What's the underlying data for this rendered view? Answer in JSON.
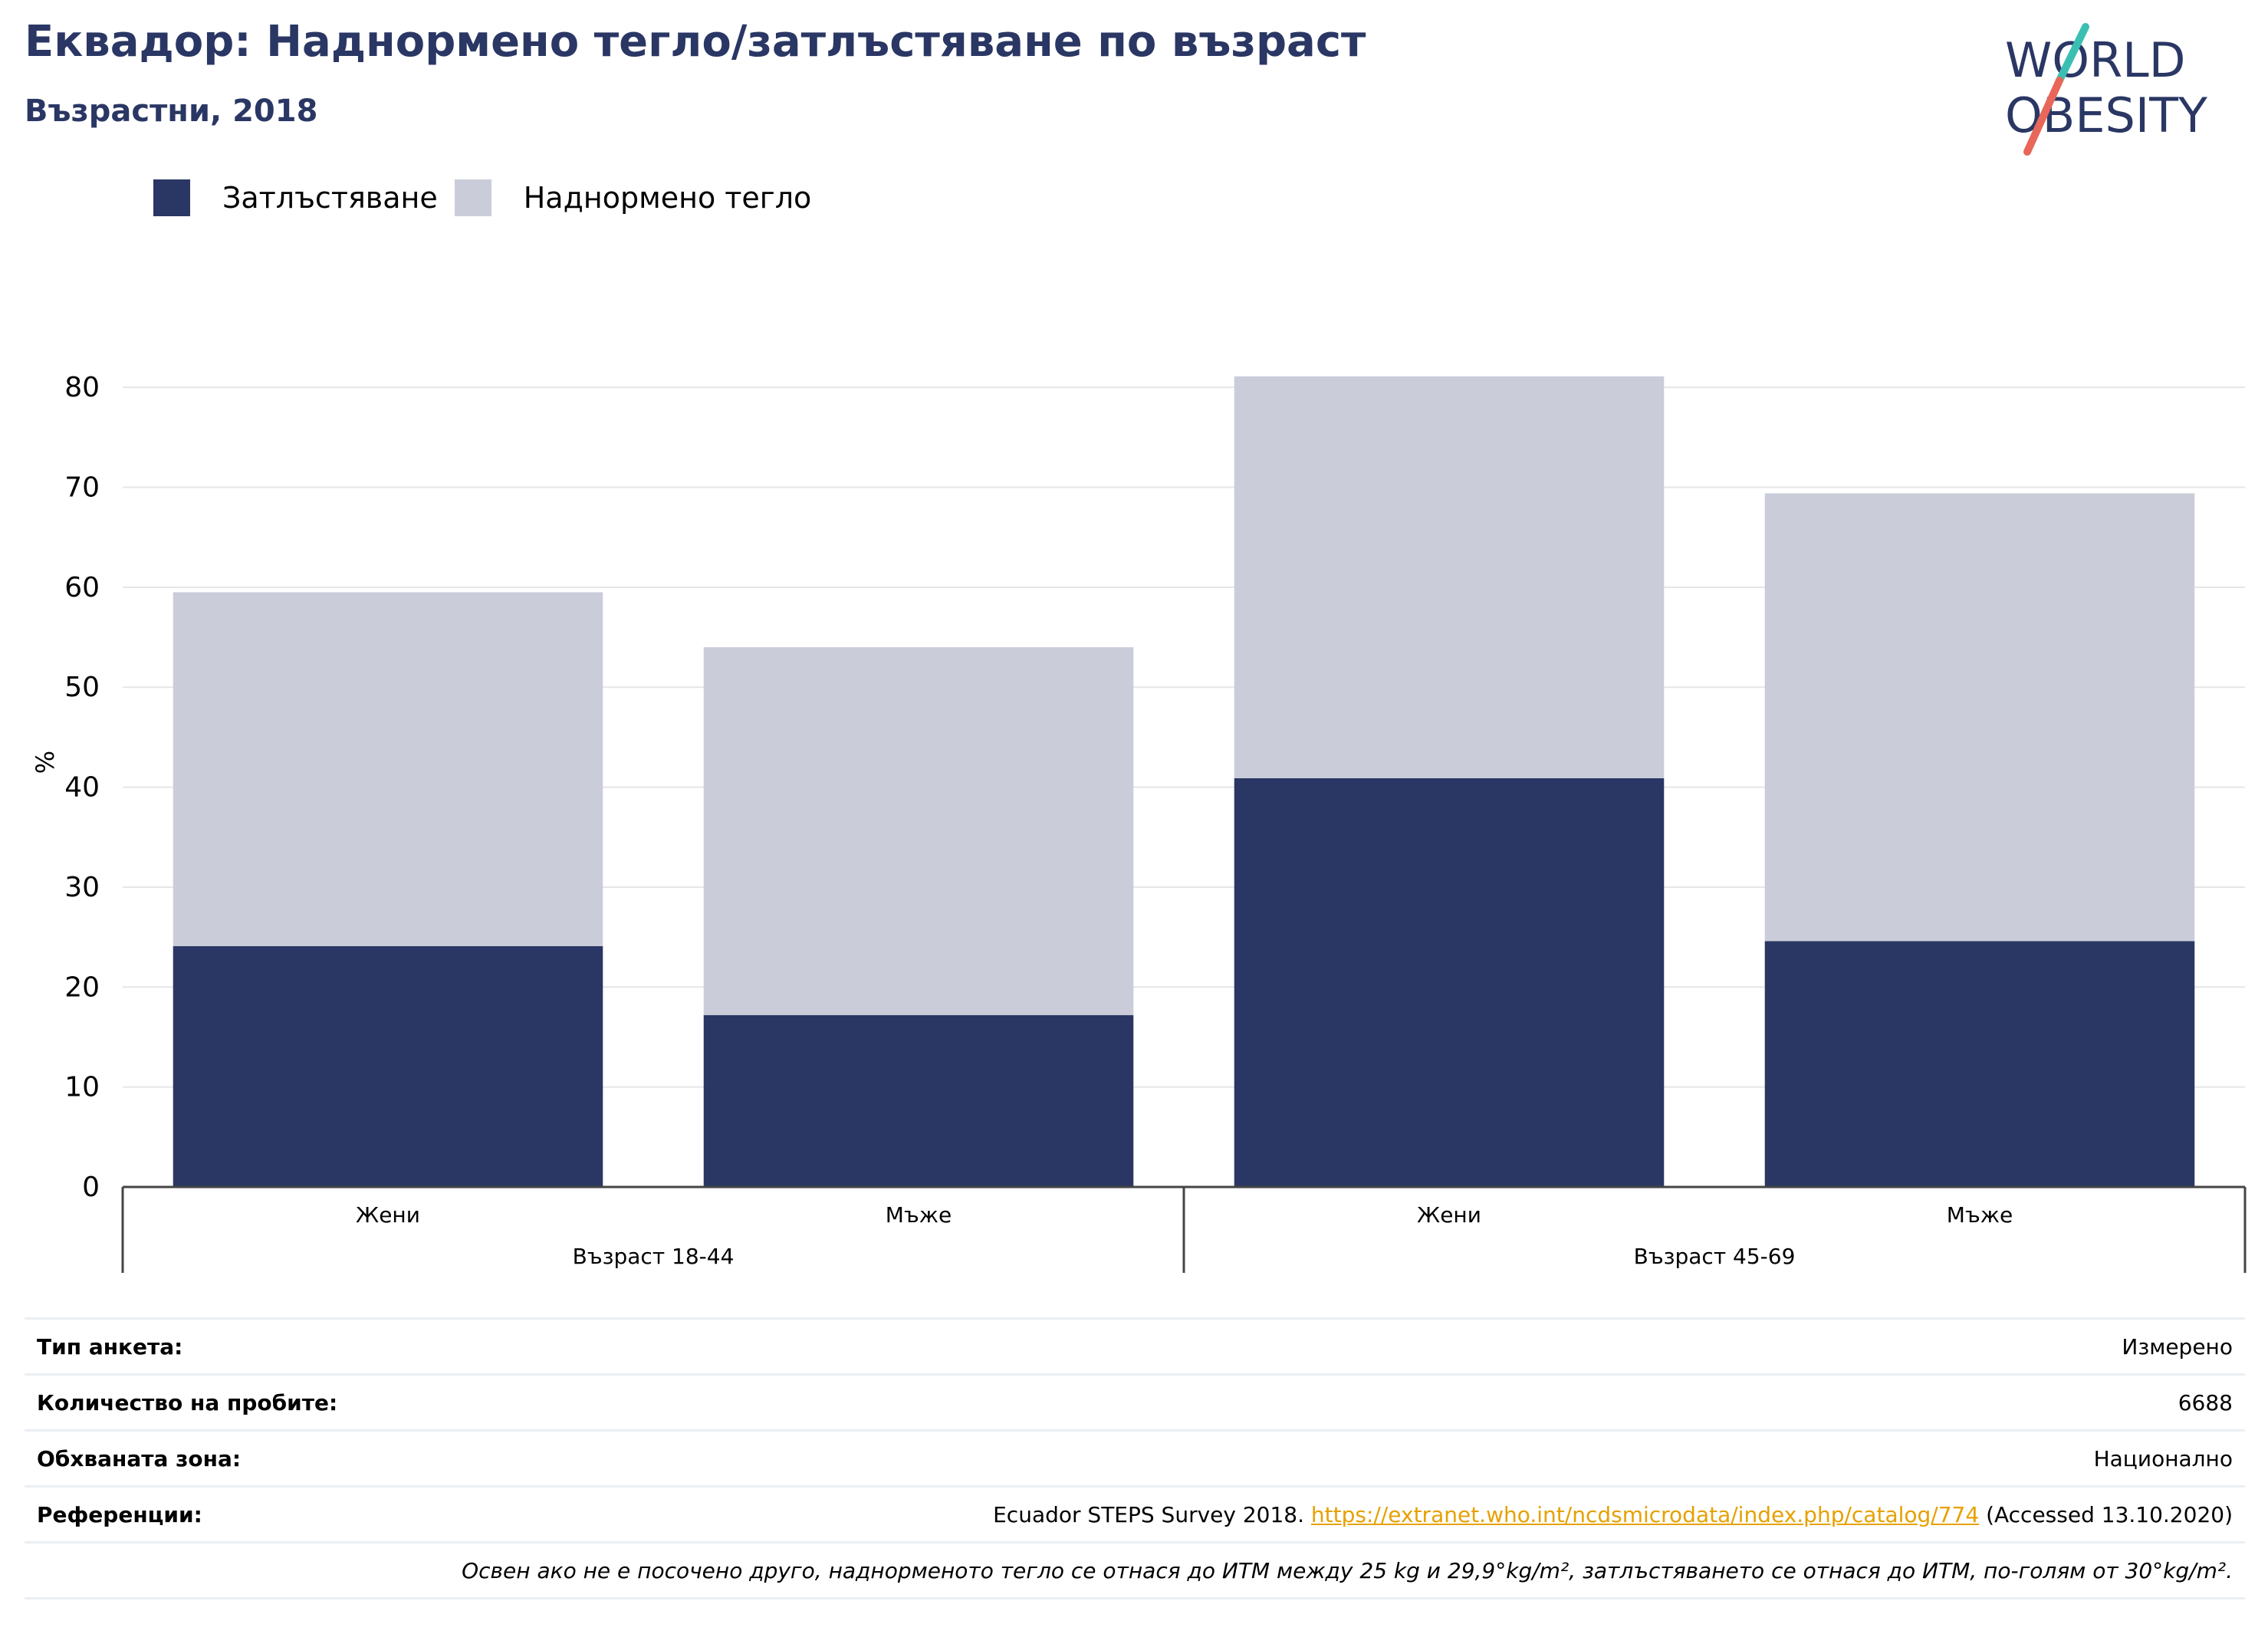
{
  "header": {
    "title": "Еквадор: Наднормено тегло/затлъстяване по възраст",
    "subtitle": "Възрастни, 2018"
  },
  "logo": {
    "line1": "WORLD",
    "line2": "OBESITY"
  },
  "colors": {
    "obesity": "#2a3764",
    "overweight": "#cacdd9",
    "title": "#2a3764",
    "link": "#e6a100",
    "grid": "#e6e6e6",
    "logo_slash_top": "#3bbfb3",
    "logo_slash_bottom": "#e8665a"
  },
  "legend": [
    {
      "label": "Затлъстяване",
      "color": "#2a3764"
    },
    {
      "label": "Наднормено тегло",
      "color": "#cacdd9"
    }
  ],
  "chart_data": {
    "type": "bar",
    "stacked": true,
    "ylabel": "%",
    "ylim": [
      0,
      85
    ],
    "yticks": [
      0,
      10,
      20,
      30,
      40,
      50,
      60,
      70,
      80
    ],
    "grid": true,
    "categories": [
      "Жени",
      "Мъже",
      "Жени",
      "Мъже"
    ],
    "groups": [
      {
        "label": "Възраст 18-44",
        "categories": [
          0,
          1
        ]
      },
      {
        "label": "Възраст 45-69",
        "categories": [
          2,
          3
        ]
      }
    ],
    "series": [
      {
        "name": "Затлъстяване",
        "color": "#2a3764",
        "values": [
          24.1,
          17.2,
          40.9,
          24.6
        ]
      },
      {
        "name": "Наднормено тегло",
        "color": "#cacdd9",
        "values": [
          35.4,
          36.8,
          40.2,
          44.8
        ]
      }
    ]
  },
  "info": {
    "survey_type_label": "Тип анкета:",
    "survey_type_value": "Измерено",
    "sample_size_label": "Количество на пробите:",
    "sample_size_value": "6688",
    "area_label": "Обхваната зона:",
    "area_value": "Национално",
    "references_label": "Референции:",
    "references_prefix": "Ecuador STEPS Survey 2018. ",
    "references_link": "https://extranet.who.int/ncdsmicrodata/index.php/catalog/774",
    "references_suffix": " (Accessed 13.10.2020)",
    "note": "Освен ако не е посочено друго, наднорменото тегло се отнася до ИТМ между 25 kg и 29,9°kg/m², затлъстяването се отнася до ИТМ, по-голям от 30°kg/m²."
  }
}
